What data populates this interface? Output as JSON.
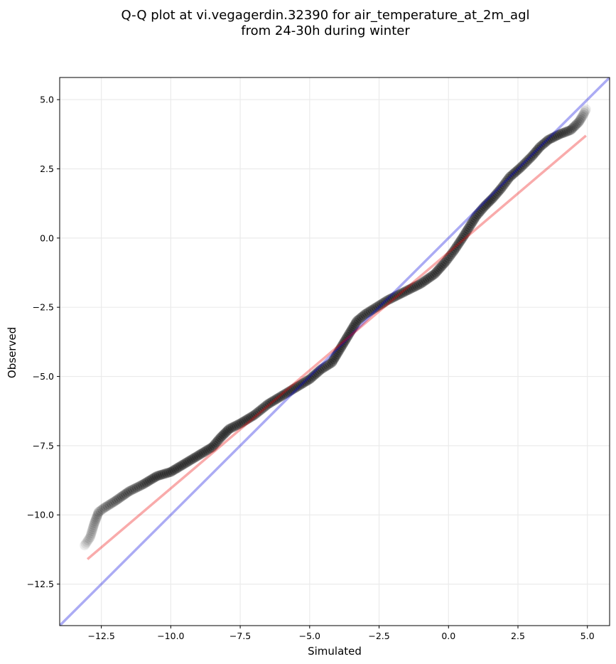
{
  "chart_data": {
    "type": "scatter",
    "title_lines": [
      "Q-Q plot at vi.vegagerdin.32390 for air_temperature_at_2m_agl",
      "from 24-30h during winter"
    ],
    "xlabel": "Simulated",
    "ylabel": "Observed",
    "xlim": [
      -14.0,
      5.8
    ],
    "ylim": [
      -14.0,
      5.8
    ],
    "xticks": [
      -12.5,
      -10.0,
      -7.5,
      -5.0,
      -2.5,
      0.0,
      2.5,
      5.0
    ],
    "yticks": [
      -12.5,
      -10.0,
      -7.5,
      -5.0,
      -2.5,
      0.0,
      2.5,
      5.0
    ],
    "xtick_labels": [
      "−12.5",
      "−10.0",
      "−7.5",
      "−5.0",
      "−2.5",
      "0.0",
      "2.5",
      "5.0"
    ],
    "ytick_labels": [
      "−12.5",
      "−10.0",
      "−7.5",
      "−5.0",
      "−2.5",
      "0.0",
      "2.5",
      "5.0"
    ],
    "grid": true,
    "colors": {
      "points": "#000000",
      "identity_line": "#aaaaf2",
      "fit_line": "#f5a7a7",
      "grid": "#ebebeb"
    },
    "quantile_curve": [
      [
        -13.1,
        -11.1
      ],
      [
        -12.9,
        -10.8
      ],
      [
        -12.75,
        -10.3
      ],
      [
        -12.6,
        -9.9
      ],
      [
        -12.4,
        -9.75
      ],
      [
        -12.0,
        -9.5
      ],
      [
        -11.5,
        -9.15
      ],
      [
        -11.0,
        -8.9
      ],
      [
        -10.5,
        -8.6
      ],
      [
        -10.0,
        -8.45
      ],
      [
        -9.5,
        -8.15
      ],
      [
        -9.0,
        -7.85
      ],
      [
        -8.5,
        -7.55
      ],
      [
        -8.2,
        -7.2
      ],
      [
        -7.9,
        -6.9
      ],
      [
        -7.5,
        -6.7
      ],
      [
        -7.0,
        -6.4
      ],
      [
        -6.5,
        -6.0
      ],
      [
        -6.0,
        -5.7
      ],
      [
        -5.5,
        -5.4
      ],
      [
        -5.0,
        -5.1
      ],
      [
        -4.6,
        -4.75
      ],
      [
        -4.2,
        -4.5
      ],
      [
        -3.9,
        -4.0
      ],
      [
        -3.6,
        -3.5
      ],
      [
        -3.3,
        -3.0
      ],
      [
        -3.0,
        -2.75
      ],
      [
        -2.6,
        -2.5
      ],
      [
        -2.2,
        -2.25
      ],
      [
        -1.8,
        -2.05
      ],
      [
        -1.4,
        -1.85
      ],
      [
        -1.0,
        -1.65
      ],
      [
        -0.5,
        -1.3
      ],
      [
        -0.1,
        -0.85
      ],
      [
        0.2,
        -0.45
      ],
      [
        0.5,
        0.0
      ],
      [
        0.75,
        0.4
      ],
      [
        1.0,
        0.8
      ],
      [
        1.3,
        1.15
      ],
      [
        1.6,
        1.45
      ],
      [
        1.9,
        1.8
      ],
      [
        2.2,
        2.2
      ],
      [
        2.6,
        2.55
      ],
      [
        3.0,
        2.95
      ],
      [
        3.3,
        3.3
      ],
      [
        3.6,
        3.55
      ],
      [
        4.0,
        3.75
      ],
      [
        4.4,
        3.9
      ],
      [
        4.7,
        4.2
      ],
      [
        4.85,
        4.45
      ],
      [
        4.95,
        4.65
      ]
    ],
    "identity_line": [
      [
        -14.0,
        -14.0
      ],
      [
        5.8,
        5.8
      ]
    ],
    "fit_line": [
      [
        -13.0,
        -11.6
      ],
      [
        4.95,
        3.7
      ]
    ]
  }
}
